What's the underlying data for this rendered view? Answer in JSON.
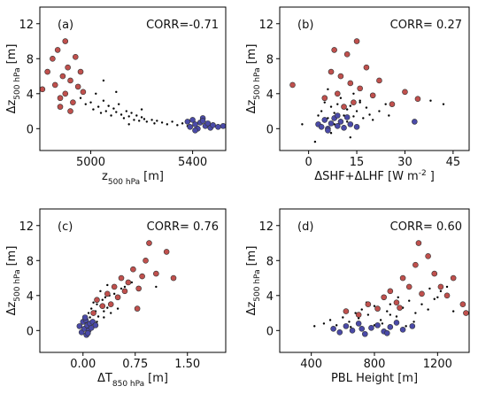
{
  "chart_data": [
    {
      "type": "scatter",
      "annotations": [
        "(a)",
        "CORR=-0.71"
      ],
      "xlabel": [
        {
          "text": "z"
        },
        {
          "text": "500 hPa",
          "sub": true
        },
        {
          "text": "[m]"
        }
      ],
      "ylabel": [
        {
          "text": "Δz"
        },
        {
          "text": "500 hPa",
          "sub": true
        },
        {
          "text": "[m]"
        }
      ],
      "xlim": [
        4800,
        5530
      ],
      "xticks": [
        5000,
        5400
      ],
      "ylim": [
        -2.5,
        13.9
      ],
      "yticks": [
        0,
        4,
        8,
        12
      ],
      "series": [
        {
          "color": "#000000",
          "marker_size": 2.4,
          "x": [
            4960,
            4980,
            5000,
            5010,
            5020,
            5030,
            5040,
            5050,
            5060,
            5070,
            5080,
            5090,
            5100,
            5110,
            5120,
            5130,
            5140,
            5150,
            5160,
            5170,
            5180,
            5190,
            5200,
            5210,
            5220,
            5240,
            5250,
            5260,
            5280,
            5300,
            5320,
            5340,
            5360,
            5380,
            5050,
            5100,
            5150,
            5200
          ],
          "values": [
            3.5,
            2.8,
            3.0,
            2.2,
            4.0,
            2.5,
            1.8,
            3.2,
            2.0,
            2.6,
            1.5,
            2.3,
            1.9,
            2.8,
            1.6,
            1.2,
            2.0,
            1.4,
            1.8,
            1.0,
            1.5,
            0.9,
            1.3,
            1.1,
            0.8,
            1.0,
            0.6,
            0.9,
            0.7,
            0.5,
            0.8,
            0.4,
            0.6,
            0.3,
            5.5,
            4.2,
            0.5,
            2.2
          ]
        },
        {
          "color": "#c0504d",
          "marker_size": 6,
          "x": [
            4810,
            4830,
            4850,
            4860,
            4870,
            4880,
            4890,
            4900,
            4910,
            4920,
            4930,
            4940,
            4950,
            4960,
            4880,
            4900,
            4920,
            4970
          ],
          "values": [
            4.5,
            6.5,
            8.0,
            5.0,
            9.0,
            3.5,
            6.0,
            4.0,
            7.0,
            5.5,
            3.0,
            8.2,
            4.8,
            6.5,
            2.5,
            10.0,
            2.0,
            4.2
          ]
        },
        {
          "color": "#4a4aa8",
          "marker_size": 6,
          "x": [
            5380,
            5390,
            5400,
            5410,
            5420,
            5430,
            5440,
            5450,
            5460,
            5470,
            5480,
            5500,
            5520,
            5410,
            5440
          ],
          "values": [
            0.8,
            0.2,
            1.0,
            0.5,
            0.0,
            0.7,
            1.2,
            0.3,
            0.6,
            0.1,
            0.4,
            0.2,
            0.3,
            -0.2,
            0.9
          ]
        }
      ]
    },
    {
      "type": "scatter",
      "annotations": [
        "(b)",
        "CORR= 0.27"
      ],
      "xlabel": [
        {
          "text": "ΔSHF+ΔLHF [W m"
        },
        {
          "text": "-2",
          "sup": true
        },
        {
          "text": "]"
        }
      ],
      "ylabel": [
        {
          "text": "Δz"
        },
        {
          "text": "500 hPa",
          "sub": true
        },
        {
          "text": "[m]"
        }
      ],
      "xlim": [
        -9,
        50
      ],
      "xticks": [
        0,
        15,
        30,
        45
      ],
      "ylim": [
        -2.5,
        13.9
      ],
      "yticks": [
        0,
        4,
        8,
        12
      ],
      "series": [
        {
          "color": "#000000",
          "marker_size": 2.4,
          "x": [
            3,
            4,
            5,
            5,
            6,
            7,
            8,
            8,
            9,
            10,
            10,
            11,
            12,
            12,
            13,
            14,
            15,
            16,
            17,
            18,
            19,
            20,
            22,
            24,
            6,
            9,
            11,
            14,
            7,
            13,
            16,
            25,
            38,
            42,
            -2,
            2
          ],
          "values": [
            1.5,
            2.0,
            0.8,
            3.0,
            1.2,
            2.5,
            1.8,
            0.5,
            2.8,
            1.0,
            3.5,
            1.5,
            2.2,
            0.8,
            2.6,
            1.4,
            2.0,
            3.0,
            1.2,
            2.4,
            1.6,
            1.0,
            2.0,
            2.8,
            4.5,
            3.8,
            0.3,
            4.0,
            -0.5,
            -1.0,
            3.2,
            1.5,
            3.2,
            2.8,
            0.5,
            -1.5
          ]
        },
        {
          "color": "#c0504d",
          "marker_size": 6,
          "x": [
            -5,
            5,
            7,
            9,
            10,
            12,
            13,
            14,
            15,
            16,
            18,
            20,
            22,
            26,
            30,
            34,
            11,
            8
          ],
          "values": [
            5.0,
            3.5,
            6.5,
            4.0,
            6.0,
            8.5,
            5.2,
            3.0,
            10.0,
            4.6,
            7.0,
            3.8,
            5.5,
            2.8,
            4.2,
            3.4,
            2.5,
            9.0
          ]
        },
        {
          "color": "#4a4aa8",
          "marker_size": 6,
          "x": [
            3,
            4,
            5,
            6,
            7,
            8,
            9,
            10,
            11,
            12,
            13,
            15,
            33,
            6,
            9
          ],
          "values": [
            0.5,
            0.2,
            1.0,
            0.0,
            0.6,
            1.2,
            0.3,
            0.8,
            0.1,
            1.3,
            0.5,
            0.2,
            0.8,
            -0.2,
            1.5
          ]
        }
      ]
    },
    {
      "type": "scatter",
      "annotations": [
        "(c)",
        "CORR= 0.76"
      ],
      "xlabel": [
        {
          "text": "ΔT"
        },
        {
          "text": "850 hPa",
          "sub": true
        },
        {
          "text": "[m]"
        }
      ],
      "ylabel": [
        {
          "text": "Δz"
        },
        {
          "text": "500 hPa",
          "sub": true
        },
        {
          "text": "[m]"
        }
      ],
      "xlim": [
        -0.62,
        2.05
      ],
      "xticks": [
        {
          "value": 0,
          "label": "0.00"
        },
        {
          "value": 0.75,
          "label": "0.75"
        },
        {
          "value": 1.5,
          "label": "1.50"
        }
      ],
      "ylim": [
        -2.5,
        13.9
      ],
      "yticks": [
        0,
        4,
        8,
        12
      ],
      "series": [
        {
          "color": "#000000",
          "marker_size": 2.4,
          "x": [
            0.0,
            0.05,
            0.08,
            0.1,
            0.12,
            0.15,
            0.18,
            0.2,
            0.22,
            0.25,
            0.28,
            0.3,
            0.32,
            0.35,
            0.38,
            0.4,
            0.45,
            0.5,
            0.55,
            0.6,
            0.1,
            0.2,
            0.3,
            0.4,
            0.5,
            0.7,
            0.85,
            1.05,
            0.15,
            0.25,
            0.35,
            -0.05,
            0.02
          ],
          "values": [
            0.8,
            1.2,
            2.0,
            1.5,
            2.5,
            1.8,
            2.2,
            3.0,
            1.6,
            2.8,
            3.5,
            2.2,
            3.8,
            2.6,
            4.0,
            3.2,
            4.2,
            3.6,
            4.8,
            5.0,
            0.5,
            1.0,
            1.5,
            2.0,
            2.5,
            5.5,
            6.0,
            5.0,
            3.2,
            4.5,
            5.2,
            0.3,
            0.0
          ]
        },
        {
          "color": "#c0504d",
          "marker_size": 6,
          "x": [
            0.15,
            0.2,
            0.28,
            0.35,
            0.4,
            0.45,
            0.5,
            0.55,
            0.6,
            0.65,
            0.72,
            0.8,
            0.85,
            0.9,
            0.95,
            1.05,
            1.2,
            1.3,
            0.78
          ],
          "values": [
            2.0,
            3.5,
            2.8,
            4.2,
            3.0,
            5.0,
            3.8,
            6.0,
            4.5,
            5.5,
            7.0,
            4.8,
            6.2,
            8.0,
            10.0,
            6.5,
            9.0,
            6.0,
            2.5
          ]
        },
        {
          "color": "#4a4aa8",
          "marker_size": 6,
          "x": [
            -0.05,
            -0.02,
            0.0,
            0.02,
            0.04,
            0.05,
            0.06,
            0.08,
            0.1,
            0.12,
            0.14,
            0.03,
            0.07,
            0.18
          ],
          "values": [
            0.5,
            -0.2,
            1.0,
            0.2,
            1.2,
            -0.5,
            0.6,
            0.0,
            0.8,
            0.3,
            1.0,
            1.5,
            -0.3,
            0.6
          ]
        }
      ]
    },
    {
      "type": "scatter",
      "annotations": [
        "(d)",
        "CORR= 0.60"
      ],
      "xlabel": [
        {
          "text": "PBL Height [m]"
        }
      ],
      "ylabel": [
        {
          "text": "Δz"
        },
        {
          "text": "500 hPa",
          "sub": true
        },
        {
          "text": "[m]"
        }
      ],
      "xlim": [
        200,
        1400
      ],
      "xticks": [
        400,
        800,
        1200
      ],
      "ylim": [
        -2.5,
        13.9
      ],
      "yticks": [
        0,
        4,
        8,
        12
      ],
      "series": [
        {
          "color": "#000000",
          "marker_size": 2.4,
          "x": [
            420,
            480,
            520,
            560,
            600,
            640,
            680,
            700,
            720,
            760,
            800,
            840,
            880,
            900,
            940,
            980,
            1020,
            1060,
            1100,
            1140,
            1180,
            1220,
            1260,
            1300,
            650,
            750,
            850,
            950,
            1050,
            1150,
            1000,
            900,
            800,
            1200
          ],
          "values": [
            0.5,
            0.8,
            1.2,
            0.6,
            1.5,
            1.0,
            2.0,
            1.4,
            2.4,
            1.8,
            2.8,
            1.2,
            2.2,
            3.0,
            1.6,
            2.6,
            3.4,
            2.0,
            3.0,
            2.4,
            3.6,
            4.5,
            5.0,
            2.2,
            0.4,
            3.2,
            0.8,
            3.8,
            1.0,
            4.8,
            0.5,
            1.8,
            0.6,
            3.8
          ]
        },
        {
          "color": "#c0504d",
          "marker_size": 6,
          "x": [
            620,
            700,
            760,
            820,
            860,
            900,
            940,
            980,
            1020,
            1060,
            1080,
            1100,
            1140,
            1180,
            1220,
            1260,
            1300,
            1360,
            1380,
            960
          ],
          "values": [
            2.2,
            1.8,
            3.0,
            2.5,
            3.8,
            4.5,
            3.2,
            6.0,
            5.0,
            7.5,
            10.0,
            4.2,
            8.5,
            6.5,
            5.0,
            4.0,
            6.0,
            3.0,
            2.0,
            2.6
          ]
        },
        {
          "color": "#4a4aa8",
          "marker_size": 6,
          "x": [
            540,
            580,
            620,
            660,
            700,
            740,
            780,
            820,
            860,
            900,
            940,
            980,
            1040,
            880,
            720
          ],
          "values": [
            0.2,
            -0.2,
            0.5,
            0.0,
            0.8,
            -0.4,
            0.3,
            0.6,
            -0.1,
            0.4,
            0.9,
            0.1,
            0.5,
            -0.3,
            0.2
          ]
        }
      ]
    }
  ]
}
